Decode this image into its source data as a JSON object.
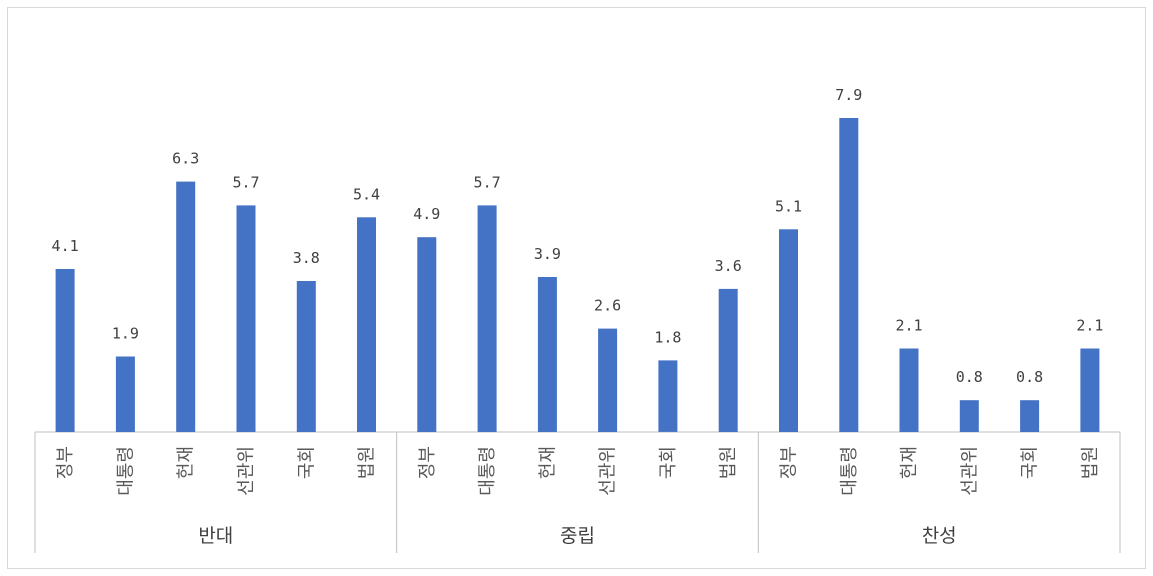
{
  "chart_data": {
    "type": "bar",
    "title": "",
    "xlabel": "",
    "ylabel": "",
    "ylim": [
      0,
      8.5
    ],
    "grid": false,
    "legend": "none",
    "colors": {
      "bar": "#4472c4"
    },
    "groups": [
      {
        "label": "반대",
        "categories": [
          "정부",
          "대통령",
          "헌재",
          "선관위",
          "국회",
          "법원"
        ],
        "values": [
          4.1,
          1.9,
          6.3,
          5.7,
          3.8,
          5.4
        ]
      },
      {
        "label": "중립",
        "categories": [
          "정부",
          "대통령",
          "헌재",
          "선관위",
          "국회",
          "법원"
        ],
        "values": [
          4.9,
          5.7,
          3.9,
          2.6,
          1.8,
          3.6
        ]
      },
      {
        "label": "찬성",
        "categories": [
          "정부",
          "대통령",
          "헌재",
          "선관위",
          "국회",
          "법원"
        ],
        "values": [
          5.1,
          7.9,
          2.1,
          0.8,
          0.8,
          2.1
        ]
      }
    ]
  }
}
